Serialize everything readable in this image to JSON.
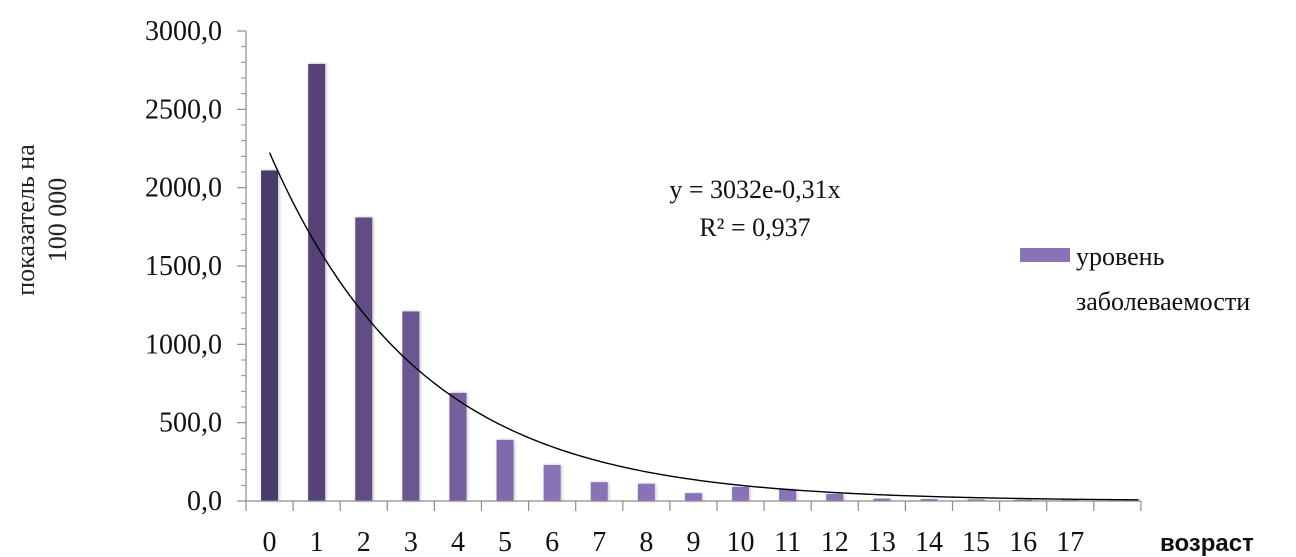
{
  "chart_data": {
    "type": "bar",
    "categories": [
      "0",
      "1",
      "2",
      "3",
      "4",
      "5",
      "6",
      "7",
      "8",
      "9",
      "10",
      "11",
      "12",
      "13",
      "14",
      "15",
      "16",
      "17"
    ],
    "series": [
      {
        "name": "уровень заболеваемости",
        "values": [
          2110,
          2790,
          1810,
          1210,
          690,
          390,
          230,
          120,
          110,
          50,
          90,
          75,
          45,
          15,
          12,
          10,
          8,
          6
        ]
      }
    ],
    "ylabel_lines": [
      "показатель на",
      "100 000"
    ],
    "xlabel": "возраст",
    "ylim": [
      0,
      3000
    ],
    "yticks": [
      "0,0",
      "500,0",
      "1000,0",
      "1500,0",
      "2000,0",
      "2500,0",
      "3000,0"
    ],
    "legend": {
      "position": "right",
      "lines": [
        "уровень",
        "заболеваемости"
      ]
    },
    "trendline": {
      "type": "exponential",
      "a": 3032,
      "b": -0.31,
      "equation": "y = 3032e-0,31x",
      "r2": "R² = 0,937"
    },
    "colors": {
      "bar_dark": "#4a3a6a",
      "bar_light": "#8a72b8",
      "trendline": "#000000",
      "axis": "#8c8c8c"
    }
  }
}
